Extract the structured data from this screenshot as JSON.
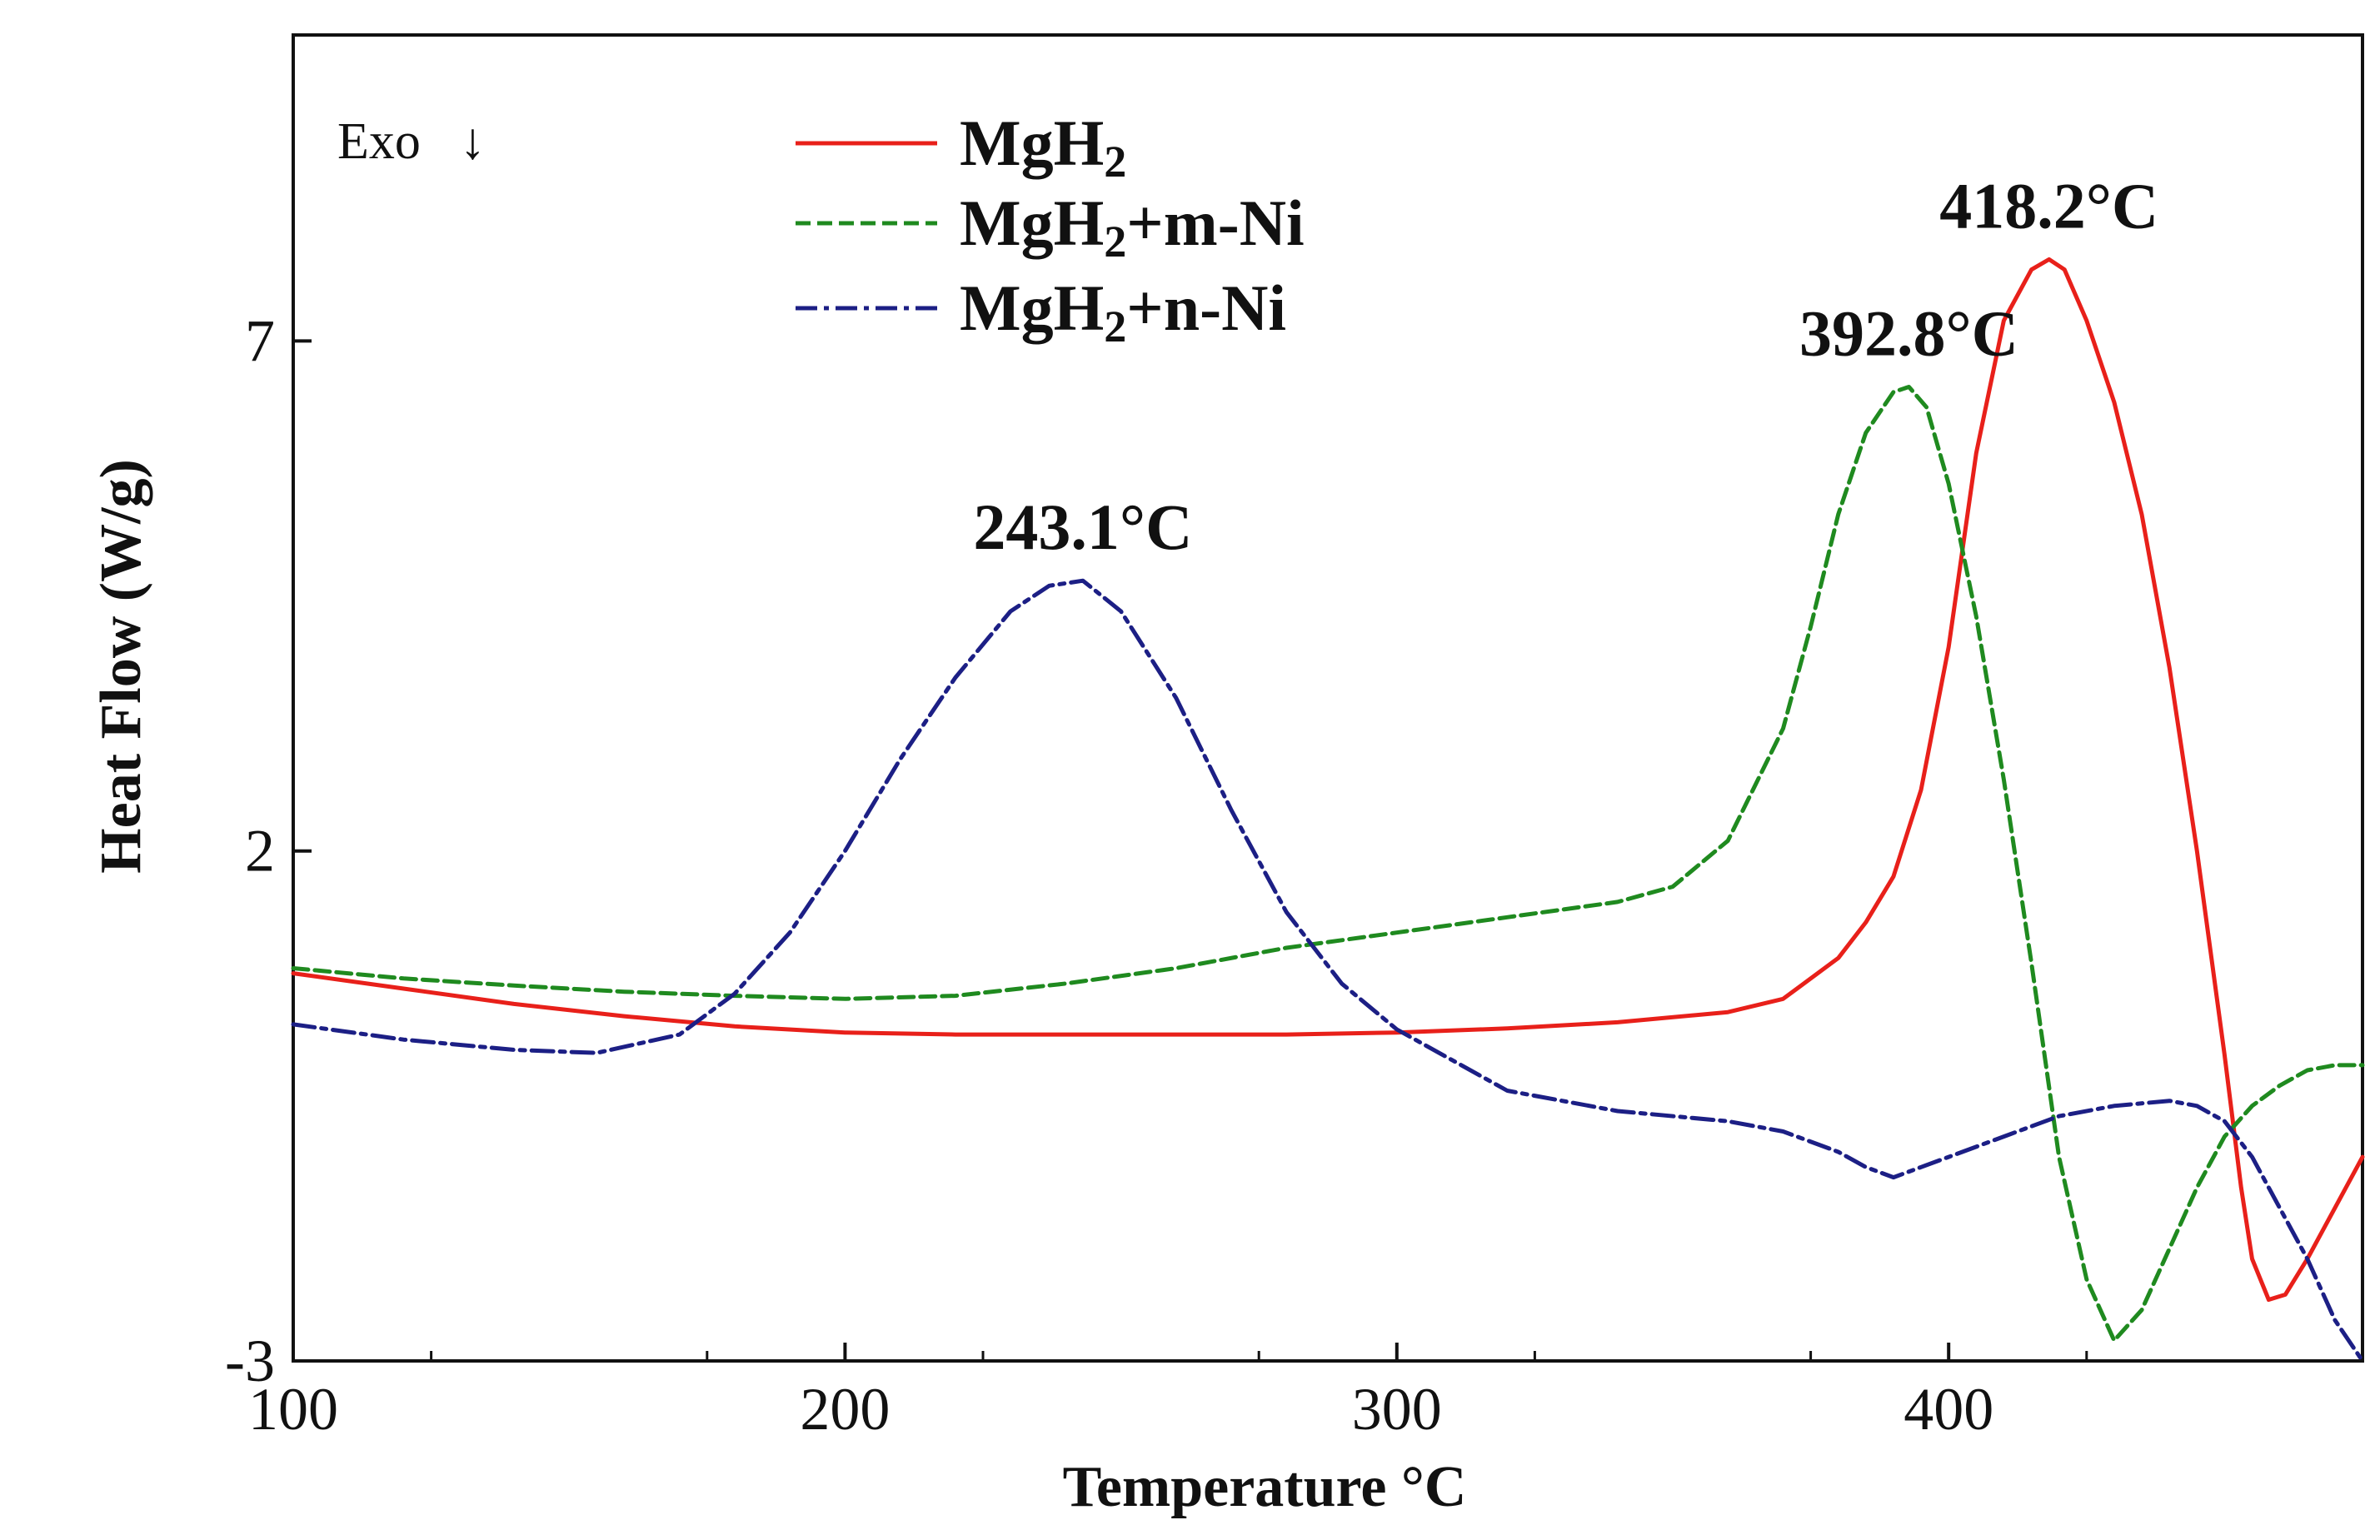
{
  "chart_data": {
    "type": "line",
    "title": "",
    "xlabel": "Temperature °C",
    "ylabel": "Heat Flow (W/g)",
    "xlim": [
      100,
      475
    ],
    "ylim": [
      -3,
      10
    ],
    "x_ticks": [
      100,
      200,
      300,
      400
    ],
    "y_ticks": [
      -3,
      2,
      7
    ],
    "x_tick_labels": [
      "100",
      "200",
      "300",
      "400"
    ],
    "y_tick_labels": [
      "-3",
      "2",
      "7"
    ],
    "grid": false,
    "legend_position": "top-center",
    "annotation_exo": "Exo",
    "exo_arrow_glyph": "↓",
    "series": [
      {
        "name": "MgH",
        "name_sub": "2",
        "name_suffix": "",
        "color": "#e8201a",
        "dash": "solid",
        "x": [
          100,
          120,
          140,
          160,
          180,
          200,
          220,
          240,
          260,
          280,
          300,
          320,
          340,
          360,
          370,
          380,
          385,
          390,
          395,
          400,
          405,
          410,
          415,
          418.2,
          421,
          425,
          430,
          435,
          440,
          445,
          450,
          453,
          455,
          458,
          461,
          465,
          470,
          475
        ],
        "values": [
          0.8,
          0.65,
          0.5,
          0.38,
          0.28,
          0.22,
          0.2,
          0.2,
          0.2,
          0.2,
          0.22,
          0.26,
          0.32,
          0.42,
          0.55,
          0.95,
          1.3,
          1.75,
          2.6,
          4.0,
          5.9,
          7.2,
          7.7,
          7.8,
          7.7,
          7.2,
          6.4,
          5.3,
          3.8,
          2.0,
          0.0,
          -1.3,
          -2.0,
          -2.4,
          -2.35,
          -2.0,
          -1.5,
          -1.0
        ]
      },
      {
        "name": "MgH",
        "name_sub": "2",
        "name_suffix": "+m-Ni",
        "color": "#1f8a1f",
        "dash": "18,8",
        "x": [
          100,
          120,
          140,
          160,
          180,
          200,
          220,
          240,
          260,
          280,
          300,
          320,
          340,
          350,
          360,
          370,
          375,
          380,
          385,
          390,
          392.8,
          396,
          400,
          405,
          410,
          415,
          420,
          425,
          430,
          435,
          440,
          445,
          450,
          455,
          460,
          465,
          470,
          475
        ],
        "values": [
          0.85,
          0.75,
          0.68,
          0.62,
          0.58,
          0.55,
          0.58,
          0.7,
          0.85,
          1.05,
          1.2,
          1.35,
          1.5,
          1.65,
          2.1,
          3.2,
          4.2,
          5.3,
          6.1,
          6.5,
          6.55,
          6.35,
          5.6,
          4.3,
          2.7,
          0.9,
          -1.0,
          -2.2,
          -2.8,
          -2.5,
          -1.9,
          -1.3,
          -0.8,
          -0.5,
          -0.3,
          -0.15,
          -0.1,
          -0.1
        ]
      },
      {
        "name": "MgH",
        "name_sub": "2",
        "name_suffix": "+n-Ni",
        "color": "#1c1f85",
        "dash": "26,8,6,8",
        "x": [
          100,
          120,
          140,
          155,
          170,
          180,
          190,
          200,
          210,
          220,
          230,
          237,
          243.1,
          250,
          260,
          270,
          280,
          290,
          300,
          310,
          320,
          340,
          360,
          370,
          380,
          385,
          390,
          395,
          400,
          410,
          420,
          430,
          440,
          445,
          450,
          455,
          460,
          465,
          470,
          475
        ],
        "values": [
          0.3,
          0.15,
          0.05,
          0.02,
          0.2,
          0.6,
          1.2,
          2.0,
          2.9,
          3.7,
          4.35,
          4.6,
          4.65,
          4.35,
          3.5,
          2.4,
          1.4,
          0.7,
          0.25,
          -0.05,
          -0.35,
          -0.55,
          -0.65,
          -0.75,
          -0.95,
          -1.1,
          -1.2,
          -1.1,
          -1.0,
          -0.8,
          -0.6,
          -0.5,
          -0.45,
          -0.5,
          -0.65,
          -1.0,
          -1.5,
          -2.0,
          -2.6,
          -3.0
        ]
      }
    ],
    "annotations": [
      {
        "text": "418.2°C",
        "x": 418.2,
        "y": 7.8
      },
      {
        "text": "392.8°C",
        "x": 392.8,
        "y": 6.55
      },
      {
        "text": "243.1°C",
        "x": 243.1,
        "y": 4.65
      }
    ]
  }
}
